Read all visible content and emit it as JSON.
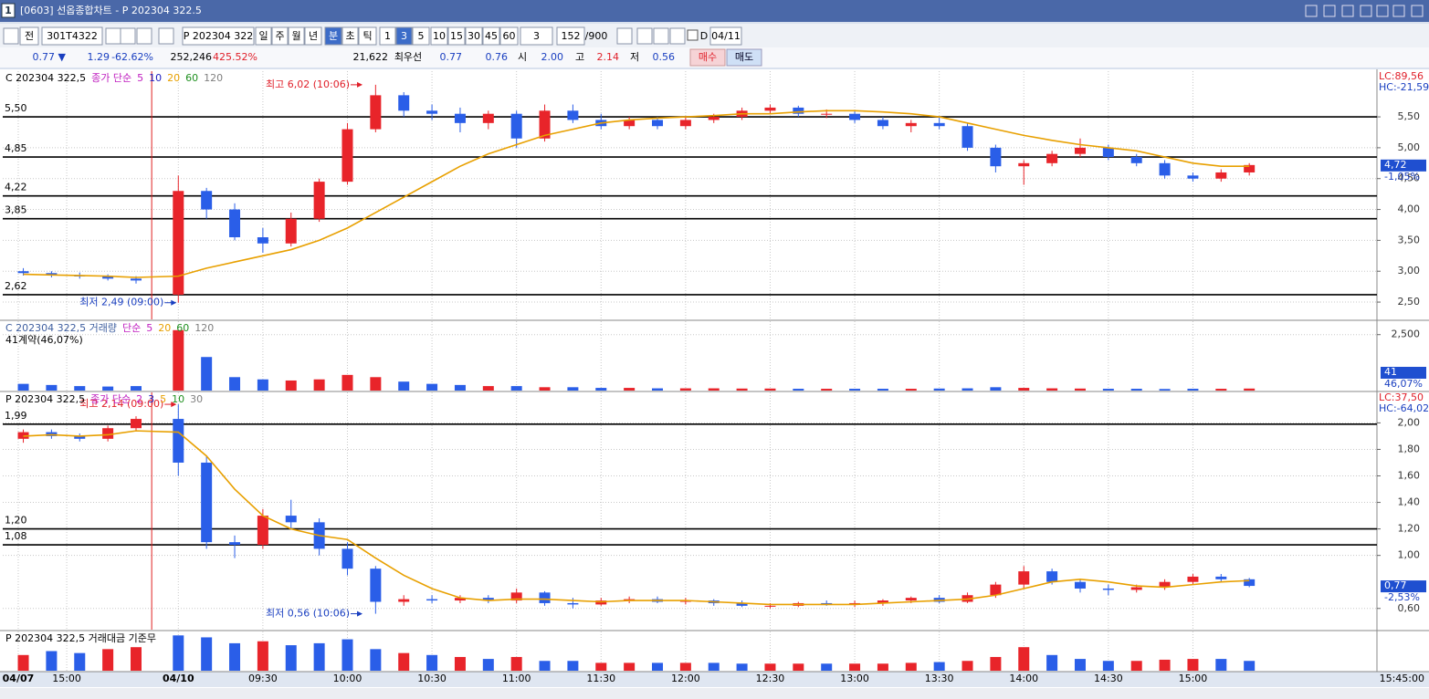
{
  "window": {
    "icon": "1",
    "title": "[0603] 선옵종합차트 - P 202304 322.5"
  },
  "toolbar": [
    "전",
    "301T4322",
    "P 202304 322",
    "일",
    "주",
    "월",
    "년",
    "분",
    "초",
    "틱",
    "1",
    "3",
    "5",
    "10",
    "15",
    "30",
    "45",
    "60",
    "3",
    "152",
    "/900",
    "D",
    "04/11"
  ],
  "info_bar": [
    "0.77 ▼",
    "1.29",
    "-62.62%",
    "252,246",
    "425.52%",
    "21,622",
    "최우선",
    "0.77",
    "0.76",
    "시",
    "2.00",
    "고",
    "2.14",
    "저",
    "0.56",
    "매수",
    "매도"
  ],
  "chart_data": [
    {
      "type": "candlestick",
      "header": [
        {
          "text": "C 202304 322,5",
          "color": "#000000"
        },
        {
          "text": "종가 단순",
          "color": "#c020c0"
        },
        {
          "text": "5",
          "color": "#c020c0"
        },
        {
          "text": "10",
          "color": "#2020c0"
        },
        {
          "text": "20",
          "color": "#e8a000"
        },
        {
          "text": "60",
          "color": "#209020"
        },
        {
          "text": "120",
          "color": "#808080"
        }
      ],
      "x": [
        -55,
        -45,
        -35,
        -25,
        -15,
        0,
        10,
        20,
        30,
        40,
        50,
        60,
        70,
        80,
        90,
        100,
        110,
        120,
        130,
        140,
        150,
        160,
        170,
        180,
        190,
        200,
        210,
        220,
        230,
        240,
        250,
        260,
        270,
        280,
        290,
        300,
        310,
        320,
        330,
        340,
        350,
        360,
        370,
        380
      ],
      "open": [
        3.0,
        2.97,
        2.93,
        2.92,
        2.88,
        2.62,
        4.3,
        4.0,
        3.55,
        3.45,
        3.85,
        4.45,
        5.3,
        5.85,
        5.6,
        5.55,
        5.4,
        5.55,
        5.15,
        5.6,
        5.45,
        5.35,
        5.45,
        5.35,
        5.45,
        5.5,
        5.6,
        5.65,
        5.55,
        5.55,
        5.45,
        5.35,
        5.4,
        5.35,
        5.0,
        4.7,
        4.75,
        4.9,
        5.0,
        4.85,
        4.75,
        4.55,
        4.5,
        4.6
      ],
      "high": [
        3.05,
        3.0,
        2.98,
        2.95,
        2.92,
        4.55,
        4.35,
        4.1,
        3.7,
        3.95,
        4.5,
        5.4,
        6.02,
        5.9,
        5.7,
        5.65,
        5.6,
        5.6,
        5.7,
        5.7,
        5.55,
        5.5,
        5.5,
        5.5,
        5.55,
        5.65,
        5.7,
        5.68,
        5.62,
        5.6,
        5.5,
        5.45,
        5.5,
        5.4,
        5.05,
        4.8,
        4.95,
        5.15,
        5.05,
        4.9,
        4.8,
        4.6,
        4.65,
        4.75
      ],
      "low": [
        2.93,
        2.9,
        2.88,
        2.85,
        2.8,
        2.49,
        3.85,
        3.5,
        3.3,
        3.4,
        3.8,
        4.4,
        5.25,
        5.5,
        5.45,
        5.25,
        5.3,
        5.0,
        5.1,
        5.4,
        5.3,
        5.3,
        5.3,
        5.3,
        5.4,
        5.45,
        5.55,
        5.5,
        5.48,
        5.4,
        5.3,
        5.25,
        5.3,
        4.95,
        4.6,
        4.4,
        4.7,
        4.85,
        4.8,
        4.7,
        4.5,
        4.45,
        4.45,
        4.55
      ],
      "close": [
        2.97,
        2.93,
        2.92,
        2.88,
        2.85,
        4.3,
        4.0,
        3.55,
        3.45,
        3.85,
        4.45,
        5.3,
        5.85,
        5.6,
        5.55,
        5.4,
        5.55,
        5.15,
        5.6,
        5.45,
        5.35,
        5.45,
        5.35,
        5.45,
        5.5,
        5.6,
        5.65,
        5.55,
        5.55,
        5.45,
        5.35,
        5.4,
        5.35,
        5.0,
        4.7,
        4.75,
        4.9,
        5.0,
        4.85,
        4.75,
        4.55,
        4.5,
        4.6,
        4.72
      ],
      "up_color": "#e8242a",
      "down_color": "#2a5ee8",
      "series": [
        {
          "name": "20",
          "color": "#e8a000",
          "values": [
            2.95,
            2.94,
            2.93,
            2.92,
            2.9,
            2.92,
            3.05,
            3.15,
            3.25,
            3.35,
            3.5,
            3.7,
            3.95,
            4.2,
            4.45,
            4.7,
            4.9,
            5.05,
            5.2,
            5.3,
            5.4,
            5.45,
            5.48,
            5.5,
            5.52,
            5.55,
            5.55,
            5.58,
            5.6,
            5.6,
            5.58,
            5.55,
            5.5,
            5.4,
            5.3,
            5.2,
            5.12,
            5.05,
            5.0,
            4.95,
            4.85,
            4.75,
            4.7,
            4.7
          ]
        }
      ],
      "xlim": [
        -62.3,
        425.3
      ],
      "ylim": [
        2.22,
        6.24
      ],
      "yticks": [
        {
          "value": 5.5,
          "label": "5,50"
        },
        {
          "value": 5.0,
          "label": "5,00"
        },
        {
          "value": 4.5,
          "label": "4,50"
        },
        {
          "value": 4.0,
          "label": "4,00"
        },
        {
          "value": 3.5,
          "label": "3,50"
        },
        {
          "value": 3.0,
          "label": "3,00"
        },
        {
          "value": 2.5,
          "label": "2,50"
        }
      ],
      "levels": [
        {
          "value": 5.5,
          "label": "5,50"
        },
        {
          "value": 4.85,
          "label": "4,85"
        },
        {
          "value": 4.22,
          "label": "4,22"
        },
        {
          "value": 3.85,
          "label": "3,85"
        },
        {
          "value": 2.62,
          "label": "2,62"
        }
      ],
      "annotations": [
        {
          "text": "최고 6,02 (10:06)",
          "x": 66,
          "y": 6.02,
          "color": "#e0202a"
        },
        {
          "text": "최저 2,49 (09:00)",
          "x": 0,
          "y": 2.49,
          "color": "#1a3fc0"
        }
      ],
      "side_labels": [
        {
          "text": "LC:89,56",
          "color": "#e0202a"
        },
        {
          "text": "HC:-21,59",
          "color": "#1a3fc0"
        }
      ],
      "current": {
        "value": 4.72,
        "label": "4,72",
        "change": "-1,05%"
      }
    },
    {
      "type": "bar",
      "header": [
        {
          "text": "C 202304 322,5 거래량",
          "color": "#4060a0"
        },
        {
          "text": "단순",
          "color": "#c020c0"
        },
        {
          "text": "5",
          "color": "#c020c0"
        },
        {
          "text": "20",
          "color": "#e8a000"
        },
        {
          "text": "60",
          "color": "#209020"
        },
        {
          "text": "120",
          "color": "#808080"
        }
      ],
      "subheader": "41계약(46,07%)",
      "x": [
        -55,
        -45,
        -35,
        -25,
        -15,
        0,
        10,
        20,
        30,
        40,
        50,
        60,
        70,
        80,
        90,
        100,
        110,
        120,
        130,
        140,
        150,
        160,
        170,
        180,
        190,
        200,
        210,
        220,
        230,
        240,
        250,
        260,
        270,
        280,
        290,
        300,
        310,
        320,
        330,
        340,
        350,
        360,
        370,
        380
      ],
      "values": [
        300,
        250,
        200,
        180,
        200,
        2700,
        1500,
        600,
        500,
        450,
        500,
        700,
        600,
        400,
        300,
        250,
        200,
        200,
        150,
        150,
        120,
        120,
        100,
        100,
        100,
        90,
        90,
        80,
        80,
        80,
        80,
        80,
        90,
        100,
        150,
        120,
        100,
        90,
        80,
        80,
        70,
        80,
        80,
        90
      ],
      "xlim": [
        -62.3,
        425.3
      ],
      "ylim": [
        0,
        3100
      ],
      "yticks": [
        {
          "value": 2500,
          "label": "2,500"
        }
      ],
      "current": {
        "value": 41,
        "label": "41",
        "change": "46,07%"
      }
    },
    {
      "type": "candlestick",
      "header": [
        {
          "text": "P 202304 322,5",
          "color": "#000000"
        },
        {
          "text": "종가 단순",
          "color": "#c020c0"
        },
        {
          "text": "2",
          "color": "#c020c0"
        },
        {
          "text": "3",
          "color": "#2020c0"
        },
        {
          "text": "5",
          "color": "#e8a000"
        },
        {
          "text": "10",
          "color": "#209020"
        },
        {
          "text": "30",
          "color": "#808080"
        }
      ],
      "x": [
        -55,
        -45,
        -35,
        -25,
        -15,
        0,
        10,
        20,
        30,
        40,
        50,
        60,
        70,
        80,
        90,
        100,
        110,
        120,
        130,
        140,
        150,
        160,
        170,
        180,
        190,
        200,
        210,
        220,
        230,
        240,
        250,
        260,
        270,
        280,
        290,
        300,
        310,
        320,
        330,
        340,
        350,
        360,
        370,
        380
      ],
      "open": [
        1.88,
        1.93,
        1.9,
        1.88,
        1.96,
        2.03,
        1.7,
        1.1,
        1.08,
        1.3,
        1.25,
        1.05,
        0.9,
        0.65,
        0.67,
        0.66,
        0.68,
        0.66,
        0.72,
        0.64,
        0.63,
        0.66,
        0.67,
        0.65,
        0.66,
        0.64,
        0.62,
        0.62,
        0.64,
        0.63,
        0.64,
        0.66,
        0.68,
        0.65,
        0.7,
        0.78,
        0.88,
        0.8,
        0.75,
        0.74,
        0.76,
        0.8,
        0.84,
        0.82
      ],
      "high": [
        1.95,
        1.95,
        1.92,
        1.98,
        2.05,
        2.14,
        1.75,
        1.15,
        1.35,
        1.42,
        1.28,
        1.1,
        0.92,
        0.7,
        0.7,
        0.7,
        0.7,
        0.75,
        0.73,
        0.68,
        0.68,
        0.69,
        0.69,
        0.68,
        0.67,
        0.66,
        0.64,
        0.65,
        0.66,
        0.66,
        0.67,
        0.69,
        0.7,
        0.72,
        0.8,
        0.92,
        0.9,
        0.82,
        0.78,
        0.78,
        0.82,
        0.86,
        0.86,
        0.83
      ],
      "low": [
        1.85,
        1.88,
        1.86,
        1.86,
        1.94,
        1.6,
        1.05,
        0.98,
        1.05,
        1.2,
        1.0,
        0.85,
        0.56,
        0.62,
        0.64,
        0.64,
        0.64,
        0.64,
        0.62,
        0.6,
        0.62,
        0.64,
        0.64,
        0.63,
        0.62,
        0.61,
        0.6,
        0.61,
        0.62,
        0.61,
        0.62,
        0.64,
        0.64,
        0.64,
        0.68,
        0.75,
        0.78,
        0.72,
        0.7,
        0.72,
        0.74,
        0.78,
        0.8,
        0.76
      ],
      "close": [
        1.93,
        1.9,
        1.88,
        1.96,
        2.03,
        1.7,
        1.1,
        1.08,
        1.3,
        1.25,
        1.05,
        0.9,
        0.65,
        0.67,
        0.66,
        0.68,
        0.66,
        0.72,
        0.64,
        0.63,
        0.66,
        0.67,
        0.65,
        0.66,
        0.64,
        0.62,
        0.62,
        0.64,
        0.63,
        0.64,
        0.66,
        0.68,
        0.65,
        0.7,
        0.78,
        0.88,
        0.8,
        0.75,
        0.74,
        0.76,
        0.8,
        0.84,
        0.82,
        0.77
      ],
      "up_color": "#e8242a",
      "down_color": "#2a5ee8",
      "series": [
        {
          "name": "5",
          "color": "#e8a000",
          "values": [
            1.9,
            1.91,
            1.9,
            1.91,
            1.94,
            1.93,
            1.75,
            1.5,
            1.3,
            1.2,
            1.15,
            1.12,
            0.98,
            0.85,
            0.75,
            0.68,
            0.66,
            0.67,
            0.67,
            0.66,
            0.65,
            0.66,
            0.66,
            0.66,
            0.65,
            0.64,
            0.63,
            0.63,
            0.63,
            0.63,
            0.64,
            0.65,
            0.66,
            0.67,
            0.7,
            0.75,
            0.8,
            0.82,
            0.8,
            0.77,
            0.76,
            0.78,
            0.8,
            0.81
          ]
        }
      ],
      "xlim": [
        -62.3,
        425.3
      ],
      "ylim": [
        0.44,
        2.23
      ],
      "yticks": [
        {
          "value": 2.0,
          "label": "2,00"
        },
        {
          "value": 1.8,
          "label": "1,80"
        },
        {
          "value": 1.6,
          "label": "1,60"
        },
        {
          "value": 1.4,
          "label": "1,40"
        },
        {
          "value": 1.2,
          "label": "1,20"
        },
        {
          "value": 1.0,
          "label": "1,00"
        },
        {
          "value": 0.6,
          "label": "0,60"
        }
      ],
      "levels": [
        {
          "value": 1.99,
          "label": "1,99"
        },
        {
          "value": 1.2,
          "label": "1,20"
        },
        {
          "value": 1.08,
          "label": "1,08"
        }
      ],
      "annotations": [
        {
          "text": "최고 2,14 (09:00)",
          "x": 0,
          "y": 2.14,
          "color": "#e0202a"
        },
        {
          "text": "최저 0,56 (10:06)",
          "x": 66,
          "y": 0.56,
          "color": "#1a3fc0"
        }
      ],
      "side_labels": [
        {
          "text": "LC:37,50",
          "color": "#e0202a"
        },
        {
          "text": "HC:-64,02",
          "color": "#1a3fc0"
        }
      ],
      "current": {
        "value": 0.77,
        "label": "0,77",
        "change": "-2,53%"
      }
    },
    {
      "type": "bar",
      "header": [
        {
          "text": "P 202304 322,5 거래대금 기준무",
          "color": "#000000"
        }
      ],
      "x": [
        -55,
        -45,
        -35,
        -25,
        -15,
        0,
        10,
        20,
        30,
        40,
        50,
        60,
        70,
        80,
        90,
        100,
        110,
        120,
        130,
        140,
        150,
        160,
        170,
        180,
        190,
        200,
        210,
        220,
        230,
        240,
        250,
        260,
        270,
        280,
        290,
        300,
        310,
        320,
        330,
        340,
        350,
        360,
        370,
        380
      ],
      "values": [
        40,
        50,
        45,
        55,
        60,
        90,
        85,
        70,
        75,
        65,
        70,
        80,
        55,
        45,
        40,
        35,
        30,
        35,
        25,
        25,
        20,
        20,
        20,
        20,
        20,
        18,
        18,
        18,
        18,
        18,
        18,
        20,
        22,
        25,
        35,
        60,
        40,
        30,
        25,
        25,
        28,
        30,
        30,
        25
      ],
      "xlim": [
        -62.3,
        425.3
      ],
      "ylim": [
        0,
        100
      ],
      "xticks": [
        {
          "value": -56.8,
          "label": "04/07"
        },
        {
          "value": -39.6,
          "label": "15:00"
        },
        {
          "value": 0,
          "label": "04/10"
        },
        {
          "value": 30,
          "label": "09:30"
        },
        {
          "value": 60,
          "label": "10:00"
        },
        {
          "value": 90,
          "label": "10:30"
        },
        {
          "value": 120,
          "label": "11:00"
        },
        {
          "value": 150,
          "label": "11:30"
        },
        {
          "value": 180,
          "label": "12:00"
        },
        {
          "value": 210,
          "label": "12:30"
        },
        {
          "value": 240,
          "label": "13:00"
        },
        {
          "value": 270,
          "label": "13:30"
        },
        {
          "value": 300,
          "label": "14:00"
        },
        {
          "value": 330,
          "label": "14:30"
        },
        {
          "value": 360,
          "label": "15:00"
        }
      ],
      "time_label": "15:45:00"
    }
  ]
}
